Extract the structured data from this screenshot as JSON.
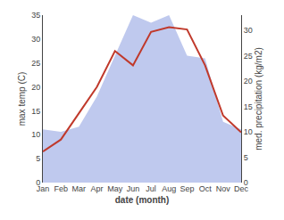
{
  "chart_data": {
    "type": "line",
    "categories": [
      "Jan",
      "Feb",
      "Mar",
      "Apr",
      "May",
      "Jun",
      "Jul",
      "Aug",
      "Sep",
      "Oct",
      "Nov",
      "Dec"
    ],
    "series": [
      {
        "type": "area",
        "axis": "y2",
        "color": "#bfc9ee",
        "values": [
          10.5,
          10.0,
          11.0,
          17.0,
          25.0,
          33.0,
          31.5,
          33.0,
          25.0,
          24.5,
          12.0,
          10.5
        ]
      },
      {
        "type": "line",
        "color": "#c0392b",
        "values": [
          6.5,
          9.0,
          14.5,
          20.0,
          27.5,
          24.5,
          31.5,
          32.5,
          32.0,
          24.5,
          14.0,
          10.5
        ]
      }
    ],
    "xlabel": "date (month)",
    "ylabel": "max temp (C)",
    "y2label": "med. precipitation (kg/m2)",
    "ylim": [
      0,
      35
    ],
    "yticks": [
      0,
      5,
      10,
      15,
      20,
      25,
      30,
      35
    ],
    "y2lim": [
      0,
      33
    ],
    "y2ticks": [
      0,
      5,
      10,
      15,
      20,
      25,
      30
    ],
    "grid": false
  }
}
